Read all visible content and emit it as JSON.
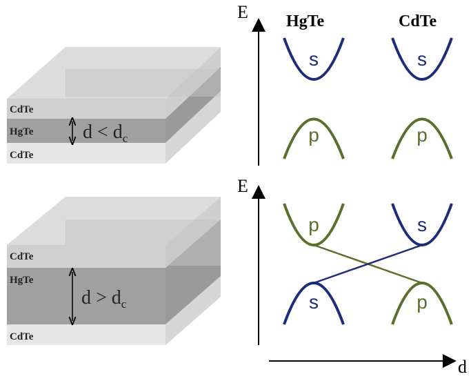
{
  "top_panel": {
    "layers": [
      "CdTe",
      "HgTe",
      "CdTe"
    ],
    "thickness_label": {
      "main": "d < d",
      "sub": "c"
    },
    "axis_label": "E",
    "columns": [
      "HgTe",
      "CdTe"
    ],
    "bands": [
      "s",
      "s",
      "p",
      "p"
    ]
  },
  "bottom_panel": {
    "layers": [
      "CdTe",
      "HgTe",
      "CdTe"
    ],
    "thickness_label": {
      "main": "d > d",
      "sub": "c"
    },
    "axis_label": "E",
    "bands": [
      "p",
      "s",
      "s",
      "p"
    ]
  },
  "x_axis_label": "d"
}
